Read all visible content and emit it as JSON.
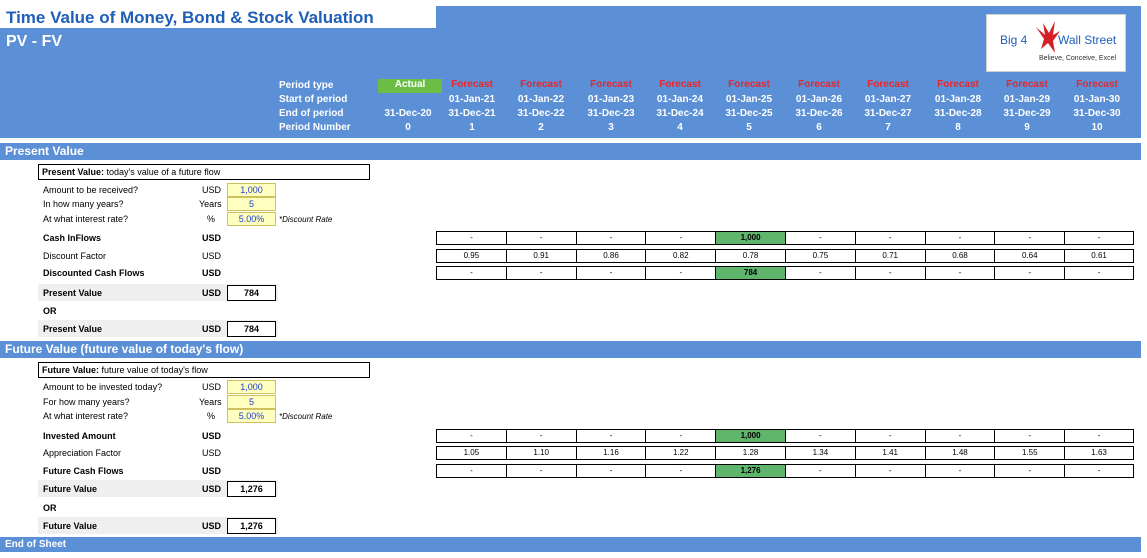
{
  "title": "Time Value of Money, Bond & Stock Valuation",
  "subtitle": "PV - FV",
  "logo": {
    "left": "Big 4",
    "right": "Wall Street",
    "tagline": "Believe, Conceive, Excel"
  },
  "header": {
    "labels": [
      "Period type",
      "Start of period",
      "End of period",
      "Period Number"
    ],
    "period_types": [
      "Actual",
      "Forecast",
      "Forecast",
      "Forecast",
      "Forecast",
      "Forecast",
      "Forecast",
      "Forecast",
      "Forecast",
      "Forecast",
      "Forecast"
    ],
    "starts": [
      "",
      "01-Jan-21",
      "01-Jan-22",
      "01-Jan-23",
      "01-Jan-24",
      "01-Jan-25",
      "01-Jan-26",
      "01-Jan-27",
      "01-Jan-28",
      "01-Jan-29",
      "01-Jan-30"
    ],
    "ends": [
      "31-Dec-20",
      "31-Dec-21",
      "31-Dec-22",
      "31-Dec-23",
      "31-Dec-24",
      "31-Dec-25",
      "31-Dec-26",
      "31-Dec-27",
      "31-Dec-28",
      "31-Dec-29",
      "31-Dec-30"
    ],
    "numbers": [
      "0",
      "1",
      "2",
      "3",
      "4",
      "5",
      "6",
      "7",
      "8",
      "9",
      "10"
    ]
  },
  "pv": {
    "section": "Present Value",
    "info_bold": "Present Value:",
    "info_text": " today's value of a future flow",
    "amount_label": "Amount to be received?",
    "amount_unit": "USD",
    "amount": "1,000",
    "years_label": "In how many years?",
    "years_unit": "Years",
    "years": "5",
    "rate_label": "At what interest rate?",
    "rate_unit": "%",
    "rate": "5.00%",
    "rate_note": "*Discount Rate",
    "cf_label": "Cash InFlows",
    "cf_unit": "USD",
    "cf": [
      "-",
      "-",
      "-",
      "-",
      "1,000",
      "-",
      "-",
      "-",
      "-",
      "-"
    ],
    "df_label": "Discount Factor",
    "df_unit": "USD",
    "df": [
      "0.95",
      "0.91",
      "0.86",
      "0.82",
      "0.78",
      "0.75",
      "0.71",
      "0.68",
      "0.64",
      "0.61"
    ],
    "dcf_label": "Discounted Cash Flows",
    "dcf_unit": "USD",
    "dcf": [
      "-",
      "-",
      "-",
      "-",
      "784",
      "-",
      "-",
      "-",
      "-",
      "-"
    ],
    "result_label": "Present Value",
    "result_unit": "USD",
    "result": "784",
    "or": "OR",
    "result2_label": "Present Value",
    "result2_unit": "USD",
    "result2": "784"
  },
  "fv": {
    "section": "Future Value (future value of today's flow)",
    "info_bold": "Future Value:",
    "info_text": " future value of today's flow",
    "amount_label": "Amount to be invested today?",
    "amount_unit": "USD",
    "amount": "1,000",
    "years_label": "For how many years?",
    "years_unit": "Years",
    "years": "5",
    "rate_label": "At what interest rate?",
    "rate_unit": "%",
    "rate": "5.00%",
    "rate_note": "*Discount Rate",
    "cf_label": "Invested Amount",
    "cf_unit": "USD",
    "cf": [
      "-",
      "-",
      "-",
      "-",
      "1,000",
      "-",
      "-",
      "-",
      "-",
      "-"
    ],
    "df_label": "Appreciation Factor",
    "df_unit": "USD",
    "df": [
      "1.05",
      "1.10",
      "1.16",
      "1.22",
      "1.28",
      "1.34",
      "1.41",
      "1.48",
      "1.55",
      "1.63"
    ],
    "dcf_label": "Future Cash Flows",
    "dcf_unit": "USD",
    "dcf": [
      "-",
      "-",
      "-",
      "-",
      "1,276",
      "-",
      "-",
      "-",
      "-",
      "-"
    ],
    "result_label": "Future Value",
    "result_unit": "USD",
    "result": "1,276",
    "or": "OR",
    "result2_label": "Future Value",
    "result2_unit": "USD",
    "result2": "1,276"
  },
  "footer": "End of Sheet",
  "colors": {
    "header_blue": "#5b8fd6",
    "title_blue": "#1f5fb8",
    "forecast_red": "#e8262c",
    "actual_green": "#6cbd45",
    "highlight_green": "#5fb56b",
    "input_yellow": "#ffffc0"
  }
}
